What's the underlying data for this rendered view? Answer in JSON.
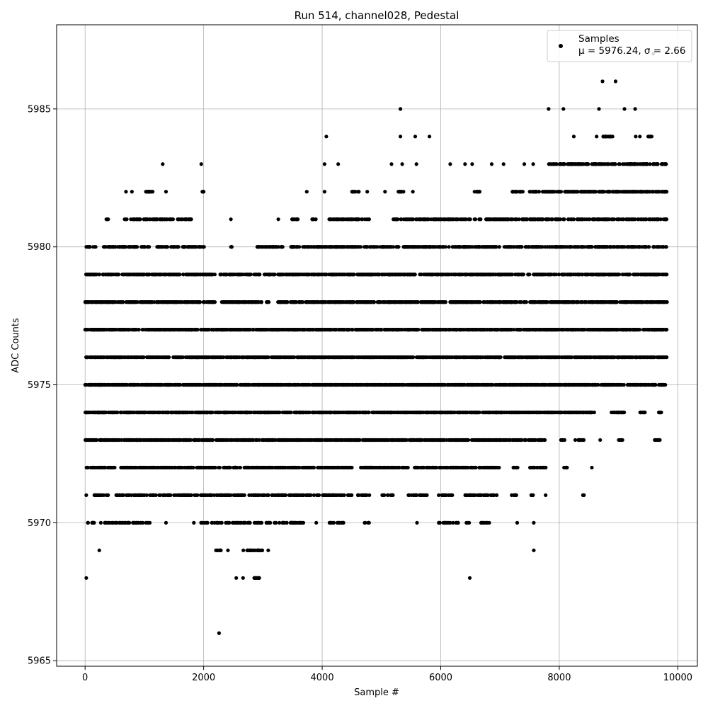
{
  "chart_data": {
    "type": "scatter",
    "title": "Run 514, channel028, Pedestal",
    "xlabel": "Sample #",
    "ylabel": "ADC Counts",
    "xlim": [
      -480,
      10330
    ],
    "ylim": [
      5964.8,
      5988.05
    ],
    "x_ticks": [
      0,
      2000,
      4000,
      6000,
      8000,
      10000
    ],
    "y_ticks": [
      5965,
      5970,
      5975,
      5980,
      5985
    ],
    "grid": true,
    "legend": {
      "placement": "top-right",
      "series_name": "Samples",
      "stats_prefix": "μ = ",
      "mu": "5976.24",
      "sigma_prefix": ", σ = ",
      "sigma": "2.66"
    },
    "marker_color": "#000000",
    "series": [
      {
        "name": "Samples",
        "density_rows": [
          {
            "y": 5966,
            "ranges": [
              [
                2240,
                2280
              ]
            ]
          },
          {
            "y": 5968,
            "ranges": [
              [
                10,
                30
              ],
              [
                2540,
                2560
              ],
              [
                2650,
                2680
              ],
              [
                2850,
                2960
              ],
              [
                6480,
                6500
              ]
            ]
          },
          {
            "y": 5969,
            "ranges": [
              [
                220,
                260
              ],
              [
                2200,
                2300
              ],
              [
                2400,
                2420
              ],
              [
                2660,
                2680
              ],
              [
                2720,
                3000
              ],
              [
                3080,
                3100
              ],
              [
                7560,
                7580
              ]
            ]
          },
          {
            "y": 5970,
            "ranges": [
              [
                30,
                180
              ],
              [
                250,
                800
              ],
              [
                800,
                1100
              ],
              [
                1350,
                1380
              ],
              [
                1820,
                1850
              ],
              [
                1950,
                3700
              ],
              [
                3880,
                3920
              ],
              [
                4100,
                4400
              ],
              [
                4690,
                4800
              ],
              [
                5580,
                5620
              ],
              [
                5950,
                6000
              ],
              [
                6000,
                6300
              ],
              [
                6420,
                6480
              ],
              [
                6650,
                6850
              ],
              [
                7280,
                7300
              ],
              [
                7560,
                7580
              ]
            ],
            "density": 0.45
          },
          {
            "y": 5971,
            "ranges": [
              [
                0,
                40
              ],
              [
                150,
                420
              ],
              [
                500,
                1450
              ],
              [
                1500,
                2150
              ],
              [
                2150,
                2600
              ],
              [
                2600,
                3700
              ],
              [
                3700,
                4500
              ],
              [
                4600,
                4800
              ],
              [
                5000,
                5200
              ],
              [
                5450,
                5800
              ],
              [
                5950,
                6200
              ],
              [
                6400,
                6950
              ],
              [
                7180,
                7300
              ],
              [
                7500,
                7560
              ],
              [
                7760,
                7780
              ],
              [
                8370,
                8420
              ]
            ],
            "density": 0.6
          },
          {
            "y": 5972,
            "ranges": [
              [
                0,
                500
              ],
              [
                600,
                2000
              ],
              [
                2000,
                3700
              ],
              [
                3700,
                4100
              ],
              [
                4100,
                4550
              ],
              [
                4650,
                5450
              ],
              [
                5550,
                6600
              ],
              [
                6650,
                7000
              ],
              [
                7220,
                7300
              ],
              [
                7500,
                7780
              ],
              [
                8080,
                8150
              ],
              [
                8540,
                8560
              ]
            ],
            "density": 0.85
          },
          {
            "y": 5973,
            "ranges": [
              [
                0,
                3800
              ],
              [
                3800,
                5600
              ],
              [
                5600,
                6500
              ],
              [
                6520,
                6700
              ],
              [
                6700,
                7700
              ],
              [
                7700,
                7760
              ],
              [
                8020,
                8100
              ],
              [
                8260,
                8420
              ],
              [
                8680,
                8700
              ],
              [
                9000,
                9070
              ],
              [
                9600,
                9700
              ]
            ],
            "density": 0.9
          },
          {
            "y": 5974,
            "ranges": [
              [
                0,
                6000
              ],
              [
                6000,
                7700
              ],
              [
                7700,
                8050
              ],
              [
                8050,
                8560
              ],
              [
                8580,
                8600
              ],
              [
                8880,
                9100
              ],
              [
                9350,
                9450
              ],
              [
                9660,
                9740
              ]
            ],
            "density": 0.95
          },
          {
            "y": 5975,
            "ranges": [
              [
                0,
                8700
              ],
              [
                8700,
                9100
              ],
              [
                9150,
                9500
              ],
              [
                9500,
                9820
              ]
            ],
            "density": 1.0
          },
          {
            "y": 5976,
            "ranges": [
              [
                0,
                9200
              ],
              [
                9200,
                9400
              ],
              [
                9400,
                9820
              ]
            ],
            "density": 1.0
          },
          {
            "y": 5977,
            "ranges": [
              [
                0,
                9820
              ]
            ],
            "density": 1.0
          },
          {
            "y": 5978,
            "ranges": [
              [
                0,
                2200
              ],
              [
                2300,
                2800
              ],
              [
                2800,
                3000
              ],
              [
                3050,
                3100
              ],
              [
                3250,
                9820
              ]
            ],
            "density": 0.95
          },
          {
            "y": 5979,
            "ranges": [
              [
                0,
                250
              ],
              [
                300,
                2200
              ],
              [
                2280,
                2800
              ],
              [
                2850,
                2950
              ],
              [
                3000,
                3200
              ],
              [
                3250,
                9820
              ]
            ],
            "density": 0.9
          },
          {
            "y": 5980,
            "ranges": [
              [
                0,
                180
              ],
              [
                300,
                1100
              ],
              [
                1200,
                2050
              ],
              [
                2450,
                2500
              ],
              [
                2900,
                3350
              ],
              [
                3450,
                6150
              ],
              [
                6200,
                9820
              ]
            ],
            "density": 0.7
          },
          {
            "y": 5981,
            "ranges": [
              [
                350,
                400
              ],
              [
                650,
                1800
              ],
              [
                2450,
                2470
              ],
              [
                3250,
                3270
              ],
              [
                3450,
                3600
              ],
              [
                3800,
                3900
              ],
              [
                4100,
                4400
              ],
              [
                4400,
                4800
              ],
              [
                5200,
                5400
              ],
              [
                5400,
                5900
              ],
              [
                5900,
                6500
              ],
              [
                6500,
                7500
              ],
              [
                7500,
                9820
              ]
            ],
            "density": 0.65
          },
          {
            "y": 5982,
            "ranges": [
              [
                680,
                700
              ],
              [
                780,
                800
              ],
              [
                1000,
                1150
              ],
              [
                1350,
                1380
              ],
              [
                1940,
                2000
              ],
              [
                3730,
                3750
              ],
              [
                4030,
                4050
              ],
              [
                4500,
                4620
              ],
              [
                4750,
                4770
              ],
              [
                5050,
                5070
              ],
              [
                5280,
                5380
              ],
              [
                5520,
                5540
              ],
              [
                6570,
                6660
              ],
              [
                7200,
                7400
              ],
              [
                7500,
                7660
              ],
              [
                7720,
                8000
              ],
              [
                8000,
                9820
              ]
            ],
            "density": 0.7
          },
          {
            "y": 5983,
            "ranges": [
              [
                1290,
                1330
              ],
              [
                1950,
                1970
              ],
              [
                4030,
                4050
              ],
              [
                4260,
                4280
              ],
              [
                5160,
                5180
              ],
              [
                5340,
                5360
              ],
              [
                5580,
                5600
              ],
              [
                6150,
                6170
              ],
              [
                6400,
                6420
              ],
              [
                6520,
                6540
              ],
              [
                6850,
                6870
              ],
              [
                7050,
                7070
              ],
              [
                7400,
                7420
              ],
              [
                7550,
                7570
              ],
              [
                7800,
                9820
              ]
            ],
            "density": 0.6
          },
          {
            "y": 5984,
            "ranges": [
              [
                4060,
                4080
              ],
              [
                5310,
                5330
              ],
              [
                5560,
                5580
              ],
              [
                5800,
                5820
              ],
              [
                8230,
                8260
              ],
              [
                8620,
                8640
              ],
              [
                8720,
                8780
              ],
              [
                8780,
                8900
              ],
              [
                9280,
                9300
              ],
              [
                9350,
                9370
              ],
              [
                9500,
                9580
              ]
            ],
            "density": 0.9
          },
          {
            "y": 5985,
            "ranges": [
              [
                5310,
                5330
              ],
              [
                7810,
                7830
              ],
              [
                8060,
                8080
              ],
              [
                8660,
                8680
              ],
              [
                9080,
                9120
              ],
              [
                9270,
                9290
              ]
            ],
            "density": 1.0
          },
          {
            "y": 5986,
            "ranges": [
              [
                8720,
                8740
              ],
              [
                8940,
                8960
              ]
            ],
            "density": 1.0
          },
          {
            "y": 5987,
            "ranges": [
              [
                9580,
                9590
              ]
            ],
            "density": 1.0
          }
        ]
      }
    ]
  }
}
